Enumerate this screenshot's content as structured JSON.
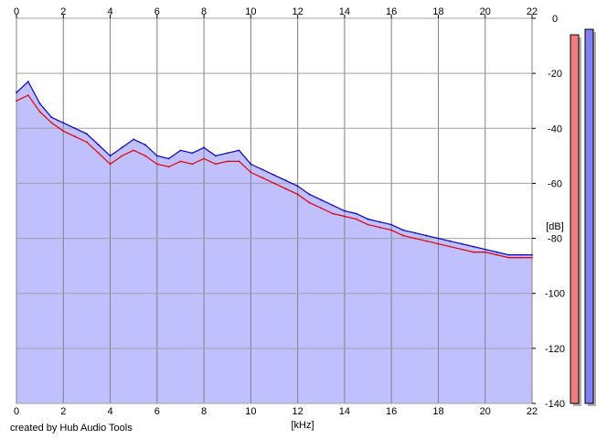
{
  "chart_data": {
    "type": "area",
    "title": "",
    "xlabel": "[kHz]",
    "ylabel": "[dB]",
    "xlim": [
      0,
      22
    ],
    "ylim": [
      -140,
      0
    ],
    "x_ticks": [
      0,
      2,
      4,
      6,
      8,
      10,
      12,
      14,
      16,
      18,
      20,
      22
    ],
    "y_ticks": [
      0,
      -20,
      -40,
      -60,
      -80,
      -100,
      -120,
      -140
    ],
    "grid": true,
    "background_fill": "#c0c0ff",
    "series": [
      {
        "color": "#0000cc",
        "x": [
          0,
          0.5,
          1,
          1.5,
          2,
          2.5,
          3,
          3.5,
          4,
          4.5,
          5,
          5.5,
          6,
          6.5,
          7,
          7.5,
          8,
          8.5,
          9,
          9.5,
          10,
          10.5,
          11,
          11.5,
          12,
          12.5,
          13,
          13.5,
          14,
          14.5,
          15,
          15.5,
          16,
          16.5,
          17,
          17.5,
          18,
          18.5,
          19,
          19.5,
          20,
          20.5,
          21,
          21.5,
          22
        ],
        "y": [
          -27,
          -23,
          -31,
          -36,
          -38,
          -40,
          -42,
          -46,
          -50,
          -47,
          -44,
          -46,
          -50,
          -51,
          -48,
          -49,
          -47,
          -50,
          -49,
          -48,
          -53,
          -55,
          -57,
          -59,
          -61,
          -64,
          -66,
          -68,
          -70,
          -71,
          -73,
          -74,
          -75,
          -77,
          -78,
          -79,
          -80,
          -81,
          -82,
          -83,
          -84,
          -85,
          -86,
          -86,
          -86
        ]
      },
      {
        "color": "#e00000",
        "x": [
          0,
          0.5,
          1,
          1.5,
          2,
          2.5,
          3,
          3.5,
          4,
          4.5,
          5,
          5.5,
          6,
          6.5,
          7,
          7.5,
          8,
          8.5,
          9,
          9.5,
          10,
          10.5,
          11,
          11.5,
          12,
          12.5,
          13,
          13.5,
          14,
          14.5,
          15,
          15.5,
          16,
          16.5,
          17,
          17.5,
          18,
          18.5,
          19,
          19.5,
          20,
          20.5,
          21,
          21.5,
          22
        ],
        "y": [
          -30,
          -28,
          -34,
          -38,
          -41,
          -43,
          -45,
          -49,
          -53,
          -50,
          -48,
          -50,
          -53,
          -54,
          -52,
          -53,
          -51,
          -53,
          -52,
          -52,
          -56,
          -58,
          -60,
          -62,
          -64,
          -67,
          -69,
          -71,
          -72,
          -73,
          -75,
          -76,
          -77,
          -79,
          -80,
          -81,
          -82,
          -83,
          -84,
          -85,
          -85,
          -86,
          -87,
          -87,
          -87
        ]
      }
    ]
  },
  "level_meters": [
    {
      "fill": "#f07c7c",
      "level_db": -6
    },
    {
      "fill": "#8080f0",
      "level_db": -4
    }
  ],
  "credit": "created by Hub Audio Tools"
}
